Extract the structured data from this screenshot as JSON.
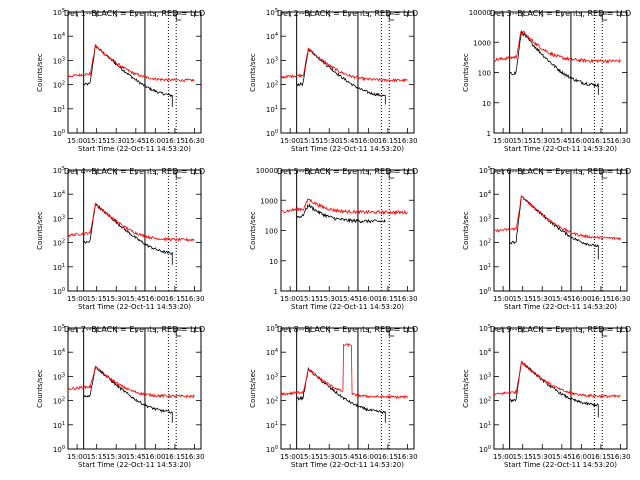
{
  "chart_data": [
    {
      "type": "line",
      "title": "Det 1--BLACK = Events, RED = LLD",
      "xlabel": "Start Time (22-Oct-11 14:53:20)",
      "ylabel": "Counts/sec",
      "x_tick_labels": [
        "15:00",
        "15:15",
        "15:30",
        "15:45",
        "16:00",
        "16:15",
        "16:30"
      ],
      "x_ticks": [
        "15:00",
        "15:15",
        "15:30",
        "15:45",
        "16:00",
        "16:15",
        "16:30"
      ],
      "xlim": [
        "14:53",
        "16:35"
      ],
      "yscale": "log",
      "y_tick_labels": [
        "10^0",
        "10^1",
        "10^2",
        "10^3",
        "10^4",
        "10^5"
      ],
      "ylim": [
        1,
        100000
      ],
      "vlines_solid": [
        "15:05",
        "15:52"
      ],
      "vlines_dotted": [
        "16:10",
        "16:16"
      ],
      "c_marker": "16:16",
      "series": [
        {
          "color": "#000000",
          "t0": "15:05",
          "t1": "16:13",
          "peak_time": "15:14",
          "peak": 4000,
          "start": 100,
          "end": 30,
          "drop_to": 12
        },
        {
          "color": "#ff0000",
          "t0": "14:53",
          "t1": "16:30",
          "peak_time": "15:14",
          "peak": 4000,
          "start": 220,
          "end": 150
        }
      ]
    },
    {
      "type": "line",
      "title": "Det 2--BLACK = Events, RED = LLD",
      "xlabel": "Start Time (22-Oct-11 14:53:20)",
      "ylabel": "Counts/sec",
      "x_tick_labels": [
        "15:00",
        "15:15",
        "15:30",
        "15:45",
        "16:00",
        "16:15",
        "16:30"
      ],
      "x_ticks": [
        "15:00",
        "15:15",
        "15:30",
        "15:45",
        "16:00",
        "16:15",
        "16:30"
      ],
      "xlim": [
        "14:53",
        "16:35"
      ],
      "yscale": "log",
      "y_tick_labels": [
        "10^0",
        "10^1",
        "10^2",
        "10^3",
        "10^4",
        "10^5"
      ],
      "ylim": [
        1,
        100000
      ],
      "vlines_solid": [
        "15:05",
        "15:52"
      ],
      "vlines_dotted": [
        "16:10",
        "16:16"
      ],
      "c_marker": "16:16",
      "series": [
        {
          "color": "#000000",
          "t0": "15:05",
          "t1": "16:13",
          "peak_time": "15:14",
          "peak": 3000,
          "start": 100,
          "end": 30,
          "drop_to": 15
        },
        {
          "color": "#ff0000",
          "t0": "14:53",
          "t1": "16:30",
          "peak_time": "15:14",
          "peak": 3000,
          "start": 200,
          "end": 150
        }
      ]
    },
    {
      "type": "line",
      "title": "Det 3--BLACK = Events, RED = LLD",
      "xlabel": "Start Time (22-Oct-11 14:53:20)",
      "ylabel": "Counts/sec",
      "x_tick_labels": [
        "15:00",
        "15:15",
        "15:30",
        "15:45",
        "16:00",
        "16:15",
        "16:30"
      ],
      "x_ticks": [
        "15:00",
        "15:15",
        "15:30",
        "15:45",
        "16:00",
        "16:15",
        "16:30"
      ],
      "xlim": [
        "14:53",
        "16:35"
      ],
      "yscale": "log",
      "y_tick_labels": [
        "1",
        "10",
        "100",
        "1000",
        "10000"
      ],
      "ylim": [
        1,
        10000
      ],
      "vlines_solid": [
        "15:05",
        "15:52"
      ],
      "vlines_dotted": [
        "16:10",
        "16:16"
      ],
      "c_marker": "16:16",
      "series": [
        {
          "color": "#000000",
          "t0": "15:05",
          "t1": "16:13",
          "peak_time": "15:14",
          "peak": 2200,
          "start": 90,
          "end": 35,
          "drop_to": 18
        },
        {
          "color": "#ff0000",
          "t0": "14:53",
          "t1": "16:30",
          "peak_time": "15:14",
          "peak": 2500,
          "start": 260,
          "end": 240
        }
      ]
    },
    {
      "type": "line",
      "title": "Det 4--BLACK = Events, RED = LLD",
      "xlabel": "Start Time (22-Oct-11 14:53:20)",
      "ylabel": "Counts/sec",
      "x_tick_labels": [
        "15:00",
        "15:15",
        "15:30",
        "15:45",
        "16:00",
        "16:15",
        "16:30"
      ],
      "x_ticks": [
        "15:00",
        "15:15",
        "15:30",
        "15:45",
        "16:00",
        "16:15",
        "16:30"
      ],
      "xlim": [
        "14:53",
        "16:35"
      ],
      "yscale": "log",
      "y_tick_labels": [
        "10^0",
        "10^1",
        "10^2",
        "10^3",
        "10^4",
        "10^5"
      ],
      "ylim": [
        1,
        100000
      ],
      "vlines_solid": [
        "15:05",
        "15:52"
      ],
      "vlines_dotted": [
        "16:10",
        "16:16"
      ],
      "c_marker": "16:16",
      "series": [
        {
          "color": "#000000",
          "t0": "15:05",
          "t1": "16:13",
          "peak_time": "15:14",
          "peak": 4000,
          "start": 100,
          "end": 30,
          "drop_to": 12
        },
        {
          "color": "#ff0000",
          "t0": "14:53",
          "t1": "16:30",
          "peak_time": "15:14",
          "peak": 4000,
          "start": 200,
          "end": 130
        }
      ]
    },
    {
      "type": "line",
      "title": "Det 5--BLACK = Events, RED = LLD",
      "xlabel": "Start Time (22-Oct-11 14:53:20)",
      "ylabel": "Counts/sec",
      "x_tick_labels": [
        "15:00",
        "15:15",
        "15:30",
        "15:45",
        "16:00",
        "16:15",
        "16:30"
      ],
      "x_ticks": [
        "15:00",
        "15:15",
        "15:30",
        "15:45",
        "16:00",
        "16:15",
        "16:30"
      ],
      "xlim": [
        "14:53",
        "16:35"
      ],
      "yscale": "log",
      "y_tick_labels": [
        "1",
        "10",
        "100",
        "1000",
        "10000"
      ],
      "ylim": [
        1,
        10000
      ],
      "vlines_solid": [
        "15:05",
        "15:52"
      ],
      "vlines_dotted": [
        "16:10",
        "16:16"
      ],
      "c_marker": "16:16",
      "series": [
        {
          "color": "#000000",
          "t0": "15:05",
          "t1": "16:13",
          "peak_time": "15:14",
          "peak": 700,
          "start": 280,
          "end": 200
        },
        {
          "color": "#ff0000",
          "t0": "14:53",
          "t1": "16:30",
          "peak_time": "15:14",
          "peak": 1100,
          "start": 420,
          "end": 400
        }
      ]
    },
    {
      "type": "line",
      "title": "Det 6--BLACK = Events, RED = LLD",
      "xlabel": "Start Time (22-Oct-11 14:53:20)",
      "ylabel": "Counts/sec",
      "x_tick_labels": [
        "15:00",
        "15:15",
        "15:30",
        "15:45",
        "16:00",
        "16:15",
        "16:30"
      ],
      "x_ticks": [
        "15:00",
        "15:15",
        "15:30",
        "15:45",
        "16:00",
        "16:15",
        "16:30"
      ],
      "xlim": [
        "14:53",
        "16:35"
      ],
      "yscale": "log",
      "y_tick_labels": [
        "10^0",
        "10^1",
        "10^2",
        "10^3",
        "10^4",
        "10^5"
      ],
      "ylim": [
        1,
        100000
      ],
      "vlines_solid": [
        "15:05",
        "15:52"
      ],
      "vlines_dotted": [
        "16:10",
        "16:16"
      ],
      "c_marker": "16:16",
      "series": [
        {
          "color": "#000000",
          "t0": "15:05",
          "t1": "16:13",
          "peak_time": "15:14",
          "peak": 8000,
          "start": 100,
          "end": 60,
          "drop_to": 20
        },
        {
          "color": "#ff0000",
          "t0": "14:53",
          "t1": "16:30",
          "peak_time": "15:14",
          "peak": 8000,
          "start": 300,
          "end": 150
        }
      ]
    },
    {
      "type": "line",
      "title": "Det 7--BLACK = Events, RED = LLD",
      "xlabel": "Start Time (22-Oct-11 14:53:20)",
      "ylabel": "Counts/sec",
      "x_tick_labels": [
        "15:00",
        "15:15",
        "15:30",
        "15:45",
        "16:00",
        "16:15",
        "16:30"
      ],
      "x_ticks": [
        "15:00",
        "15:15",
        "15:30",
        "15:45",
        "16:00",
        "16:15",
        "16:30"
      ],
      "xlim": [
        "14:53",
        "16:35"
      ],
      "yscale": "log",
      "y_tick_labels": [
        "10^0",
        "10^1",
        "10^2",
        "10^3",
        "10^4",
        "10^5"
      ],
      "ylim": [
        1,
        100000
      ],
      "vlines_solid": [
        "15:05",
        "15:52"
      ],
      "vlines_dotted": [
        "16:10",
        "16:16"
      ],
      "c_marker": "16:16",
      "series": [
        {
          "color": "#000000",
          "t0": "15:05",
          "t1": "16:13",
          "peak_time": "15:14",
          "peak": 2500,
          "start": 150,
          "end": 30,
          "drop_to": 12
        },
        {
          "color": "#ff0000",
          "t0": "14:53",
          "t1": "16:30",
          "peak_time": "15:14",
          "peak": 2500,
          "start": 300,
          "end": 150
        }
      ]
    },
    {
      "type": "line",
      "title": "Det 8--BLACK = Events, RED = LLD",
      "xlabel": "Start Time (22-Oct-11 14:53:20)",
      "ylabel": "Counts/sec",
      "x_tick_labels": [
        "15:00",
        "15:15",
        "15:30",
        "15:45",
        "16:00",
        "16:15",
        "16:30"
      ],
      "x_ticks": [
        "15:00",
        "15:15",
        "15:30",
        "15:45",
        "16:00",
        "16:15",
        "16:30"
      ],
      "xlim": [
        "14:53",
        "16:35"
      ],
      "yscale": "log",
      "y_tick_labels": [
        "10^0",
        "10^1",
        "10^2",
        "10^3",
        "10^4",
        "10^5"
      ],
      "ylim": [
        1,
        100000
      ],
      "vlines_solid": [
        "15:05",
        "15:52"
      ],
      "vlines_dotted": [
        "16:10",
        "16:16"
      ],
      "c_marker": "16:16",
      "series": [
        {
          "color": "#000000",
          "t0": "15:05",
          "t1": "16:13",
          "peak_time": "15:14",
          "peak": 2000,
          "start": 120,
          "end": 30,
          "drop_to": 12
        },
        {
          "color": "#ff0000",
          "t0": "14:53",
          "t1": "16:30",
          "peak_time": "15:14",
          "peak": 2000,
          "start": 180,
          "end": 140,
          "spike": {
            "t0": "15:41",
            "t1": "15:47",
            "value": 20000
          }
        }
      ]
    },
    {
      "type": "line",
      "title": "Det 9--BLACK = Events, RED = LLD",
      "xlabel": "Start Time (22-Oct-11 14:53:20)",
      "ylabel": "Counts/sec",
      "x_tick_labels": [
        "15:00",
        "15:15",
        "15:30",
        "15:45",
        "16:00",
        "16:15",
        "16:30"
      ],
      "x_ticks": [
        "15:00",
        "15:15",
        "15:30",
        "15:45",
        "16:00",
        "16:15",
        "16:30"
      ],
      "xlim": [
        "14:53",
        "16:35"
      ],
      "yscale": "log",
      "y_tick_labels": [
        "10^0",
        "10^1",
        "10^2",
        "10^3",
        "10^4",
        "10^5"
      ],
      "ylim": [
        1,
        100000
      ],
      "vlines_solid": [
        "15:05",
        "15:52"
      ],
      "vlines_dotted": [
        "16:10",
        "16:16"
      ],
      "c_marker": "16:16",
      "series": [
        {
          "color": "#000000",
          "t0": "15:05",
          "t1": "16:13",
          "peak_time": "15:14",
          "peak": 4000,
          "start": 100,
          "end": 60,
          "drop_to": 20
        },
        {
          "color": "#ff0000",
          "t0": "14:53",
          "t1": "16:30",
          "peak_time": "15:14",
          "peak": 4000,
          "start": 180,
          "end": 150
        }
      ]
    }
  ]
}
